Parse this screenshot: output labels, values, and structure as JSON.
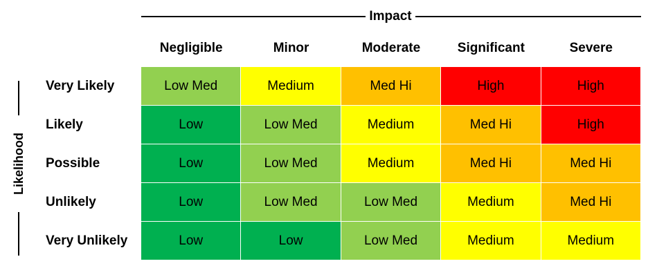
{
  "axes": {
    "impact_label": "Impact",
    "likelihood_label": "Likelihood"
  },
  "columns": [
    "Negligible",
    "Minor",
    "Moderate",
    "Significant",
    "Severe"
  ],
  "rows": [
    {
      "label": "Very Likely",
      "cells": [
        "Low Med",
        "Medium",
        "Med Hi",
        "High",
        "High"
      ]
    },
    {
      "label": "Likely",
      "cells": [
        "Low",
        "Low Med",
        "Medium",
        "Med Hi",
        "High"
      ]
    },
    {
      "label": "Possible",
      "cells": [
        "Low",
        "Low Med",
        "Medium",
        "Med Hi",
        "Med Hi"
      ]
    },
    {
      "label": "Unlikely",
      "cells": [
        "Low",
        "Low Med",
        "Low Med",
        "Medium",
        "Med Hi"
      ]
    },
    {
      "label": "Very Unlikely",
      "cells": [
        "Low",
        "Low",
        "Low Med",
        "Medium",
        "Medium"
      ]
    }
  ],
  "colors": {
    "Low": "#00b050",
    "Low Med": "#92d050",
    "Medium": "#ffff00",
    "Med Hi": "#ffc000",
    "High": "#ff0000"
  }
}
